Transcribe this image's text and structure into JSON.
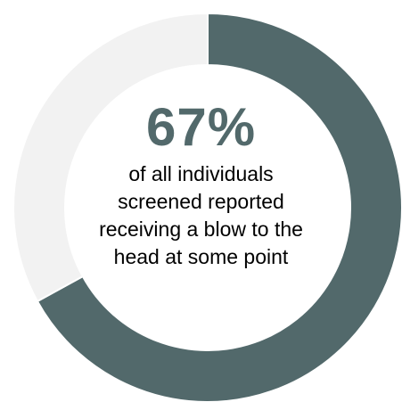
{
  "chart_data": {
    "type": "pie",
    "variant": "donut",
    "slices": [
      {
        "label": "reported a blow to the head",
        "value": 67,
        "color": "#52696b"
      },
      {
        "label": "",
        "value": 33,
        "color": "#f2f2f2"
      }
    ],
    "center_value": "67%",
    "caption_lines": [
      "of all individuals",
      "screened reported",
      "receiving a blow to the",
      "head at some point"
    ]
  }
}
